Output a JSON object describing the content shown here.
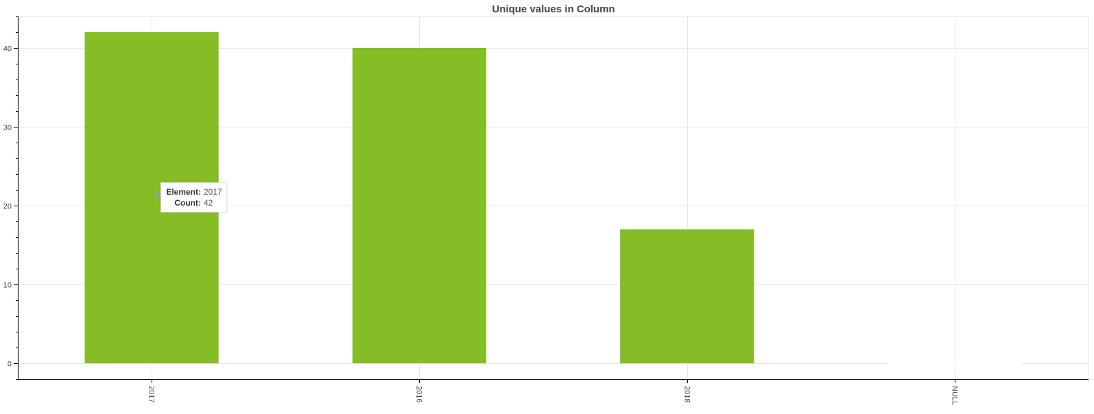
{
  "chart_data": {
    "type": "bar",
    "title": "Unique values in Column",
    "categories": [
      "2017",
      "2016",
      "2018",
      "NULL"
    ],
    "values": [
      42,
      40,
      17,
      0
    ],
    "xlabel": "",
    "ylabel": "",
    "ylim": [
      -2,
      44
    ],
    "yticks": [
      0,
      10,
      20,
      30,
      40
    ],
    "grid": true,
    "bar_color": "#86bc25",
    "tooltip": {
      "element_label": "Element:",
      "element_value": "2017",
      "count_label": "Count:",
      "count_value": "42"
    }
  }
}
